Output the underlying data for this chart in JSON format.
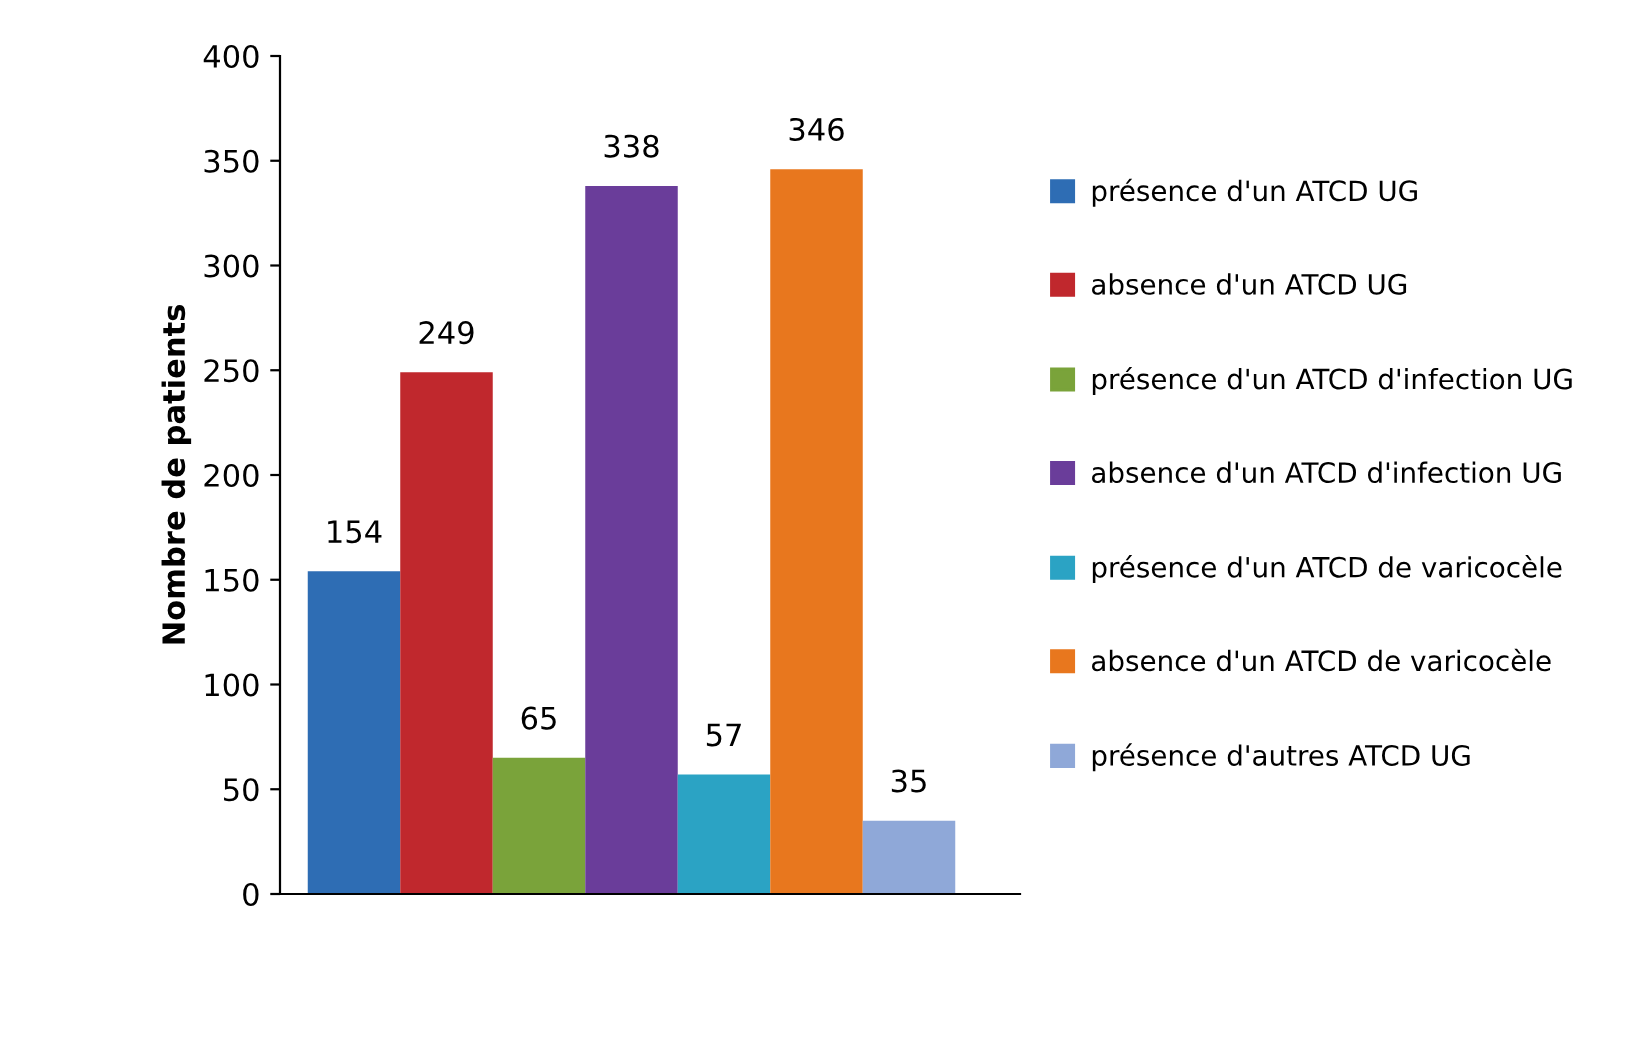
{
  "chart_data": {
    "type": "bar",
    "ylabel": "Nombre de patients",
    "categories": [
      null
    ],
    "series": [
      {
        "name": "présence d'un ATCD UG",
        "color": "#2e6db4",
        "values": [
          154
        ]
      },
      {
        "name": "absence d'un ATCD UG",
        "color": "#c0282d",
        "values": [
          249
        ]
      },
      {
        "name": "présence d'un ATCD d'infection UG",
        "color": "#7aa33a",
        "values": [
          65
        ]
      },
      {
        "name": "absence d'un ATCD d'infection UG",
        "color": "#6a3d9a",
        "values": [
          338
        ]
      },
      {
        "name": "présence d'un ATCD de varicocèle",
        "color": "#2ba3c4",
        "values": [
          57
        ]
      },
      {
        "name": "absence d'un ATCD de varicocèle",
        "color": "#e8771e",
        "values": [
          346
        ]
      },
      {
        "name": "présence d'autres ATCD UG",
        "color": "#8fa8d8",
        "values": [
          35
        ]
      }
    ],
    "ylim": [
      0,
      400
    ],
    "yticks": [
      0,
      50,
      100,
      150,
      200,
      250,
      300,
      350,
      400
    ],
    "data_labels": true,
    "grid": false,
    "legend": "right"
  }
}
